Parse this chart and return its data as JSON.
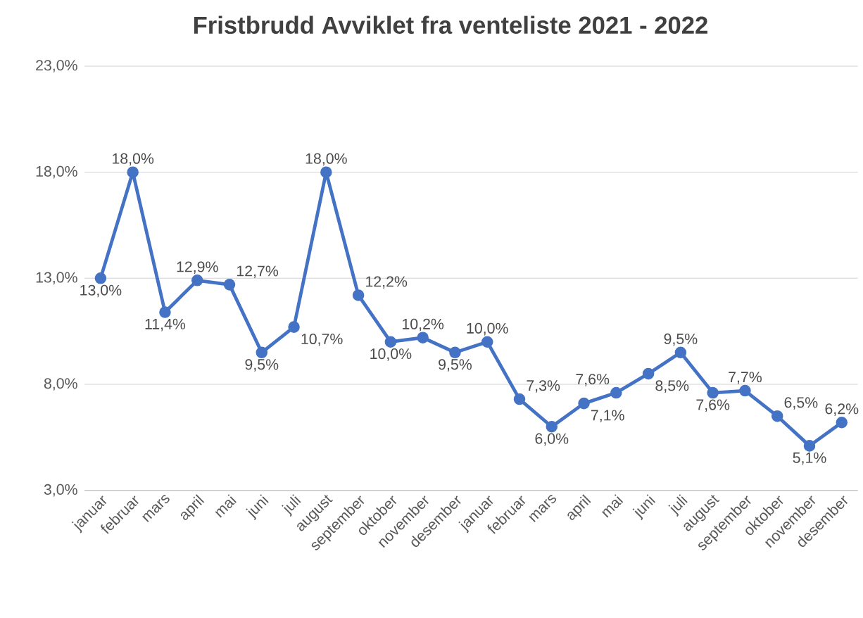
{
  "chart_data": {
    "type": "line",
    "title": "Fristbrudd Avviklet fra venteliste 2021 - 2022",
    "categories": [
      "januar",
      "februar",
      "mars",
      "april",
      "mai",
      "juni",
      "juli",
      "august",
      "september",
      "oktober",
      "november",
      "desember",
      "januar",
      "februar",
      "mars",
      "april",
      "mai",
      "juni",
      "juli",
      "august",
      "september",
      "oktober",
      "november",
      "desember"
    ],
    "series": [
      {
        "color": "#4472c4",
        "values": [
          13.0,
          18.0,
          11.4,
          12.9,
          12.7,
          9.5,
          10.7,
          18.0,
          12.2,
          10.0,
          10.2,
          9.5,
          10.0,
          7.3,
          6.0,
          7.1,
          7.6,
          8.5,
          9.5,
          7.6,
          7.7,
          6.5,
          5.1,
          6.2
        ],
        "value_labels": [
          "13,0%",
          "18,0%",
          "11,4%",
          "12,9%",
          "12,7%",
          "9,5%",
          "10,7%",
          "18,0%",
          "12,2%",
          "10,0%",
          "10,2%",
          "9,5%",
          "10,0%",
          "7,3%",
          "6,0%",
          "7,1%",
          "7,6%",
          "8,5%",
          "9,5%",
          "7,6%",
          "7,7%",
          "6,5%",
          "5,1%",
          "6,2%"
        ]
      }
    ],
    "ylim": [
      3,
      23
    ],
    "yticks": [
      {
        "value": 3,
        "label": "3,0%"
      },
      {
        "value": 8,
        "label": "8,0%"
      },
      {
        "value": 13,
        "label": "13,0%"
      },
      {
        "value": 18,
        "label": "18,0%"
      },
      {
        "value": 23,
        "label": "23,0%"
      }
    ],
    "grid": "y",
    "marker": "circle",
    "line_style": "solid"
  }
}
